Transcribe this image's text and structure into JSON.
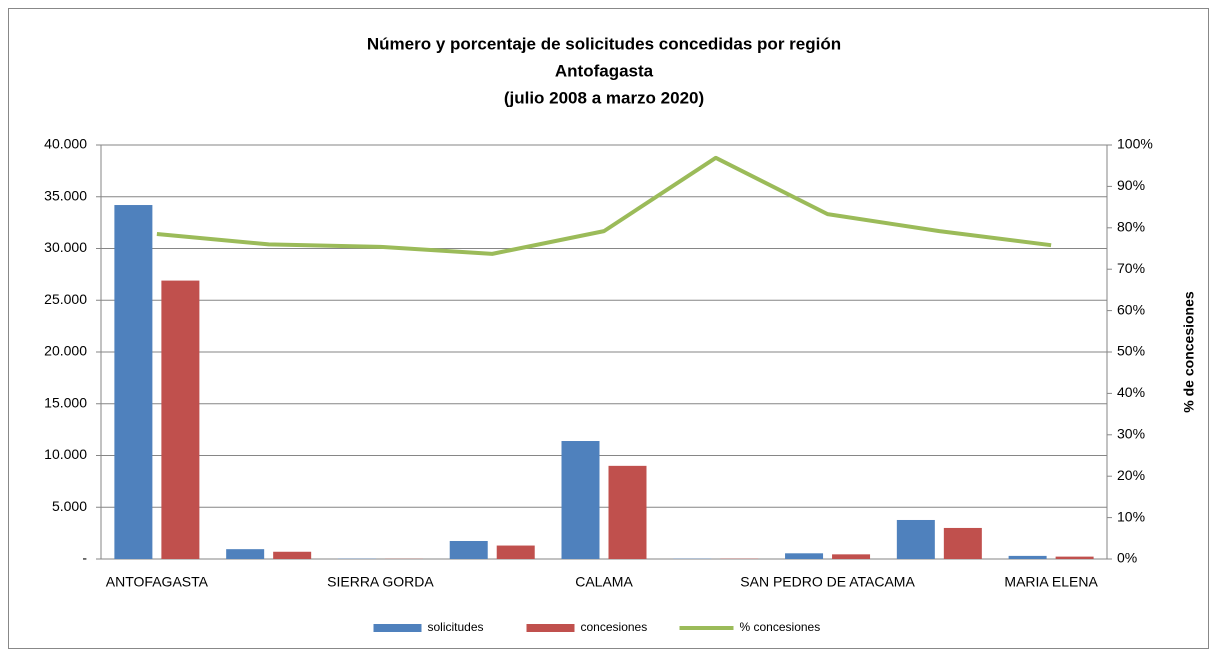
{
  "chart_data": {
    "type": "bar",
    "title": [
      "Número y porcentaje de solicitudes concedidas por región",
      "Antofagasta",
      "(julio 2008 a marzo 2020)"
    ],
    "y2label": "% de concesiones",
    "categories": [
      "ANTOFAGASTA",
      null,
      "SIERRA GORDA",
      null,
      "CALAMA",
      null,
      "SAN PEDRO DE ATACAMA",
      null,
      "MARIA ELENA"
    ],
    "series": [
      {
        "name": "solicitudes",
        "color": "#4f81bd",
        "type": "bar",
        "values": [
          34200,
          950,
          30,
          1740,
          11400,
          30,
          550,
          3770,
          300
        ]
      },
      {
        "name": "concesiones",
        "color": "#c0504d",
        "type": "bar",
        "values": [
          26900,
          700,
          20,
          1300,
          9000,
          29,
          450,
          3000,
          230
        ]
      },
      {
        "name": "% concesiones",
        "color": "#9bbb59",
        "type": "line",
        "axis": "y2",
        "values": [
          78.5,
          76,
          75.4,
          73.7,
          79.2,
          96.9,
          83.3,
          79.2,
          75.8
        ]
      }
    ],
    "ylim": [
      0,
      40000
    ],
    "yticks": [
      {
        "value": 0,
        "label": "-"
      },
      {
        "value": 5000,
        "label": "5.000"
      },
      {
        "value": 10000,
        "label": "10.000"
      },
      {
        "value": 15000,
        "label": "15.000"
      },
      {
        "value": 20000,
        "label": "20.000"
      },
      {
        "value": 25000,
        "label": "25.000"
      },
      {
        "value": 30000,
        "label": "30.000"
      },
      {
        "value": 35000,
        "label": "35.000"
      },
      {
        "value": 40000,
        "label": "40.000"
      }
    ],
    "y2lim": [
      0,
      100
    ],
    "y2ticks": [
      {
        "value": 0,
        "label": "0%"
      },
      {
        "value": 10,
        "label": "10%"
      },
      {
        "value": 20,
        "label": "20%"
      },
      {
        "value": 30,
        "label": "30%"
      },
      {
        "value": 40,
        "label": "40%"
      },
      {
        "value": 50,
        "label": "50%"
      },
      {
        "value": 60,
        "label": "60%"
      },
      {
        "value": 70,
        "label": "70%"
      },
      {
        "value": 80,
        "label": "80%"
      },
      {
        "value": 90,
        "label": "90%"
      },
      {
        "value": 100,
        "label": "100%"
      }
    ],
    "grid": true,
    "legend": "bottom"
  }
}
